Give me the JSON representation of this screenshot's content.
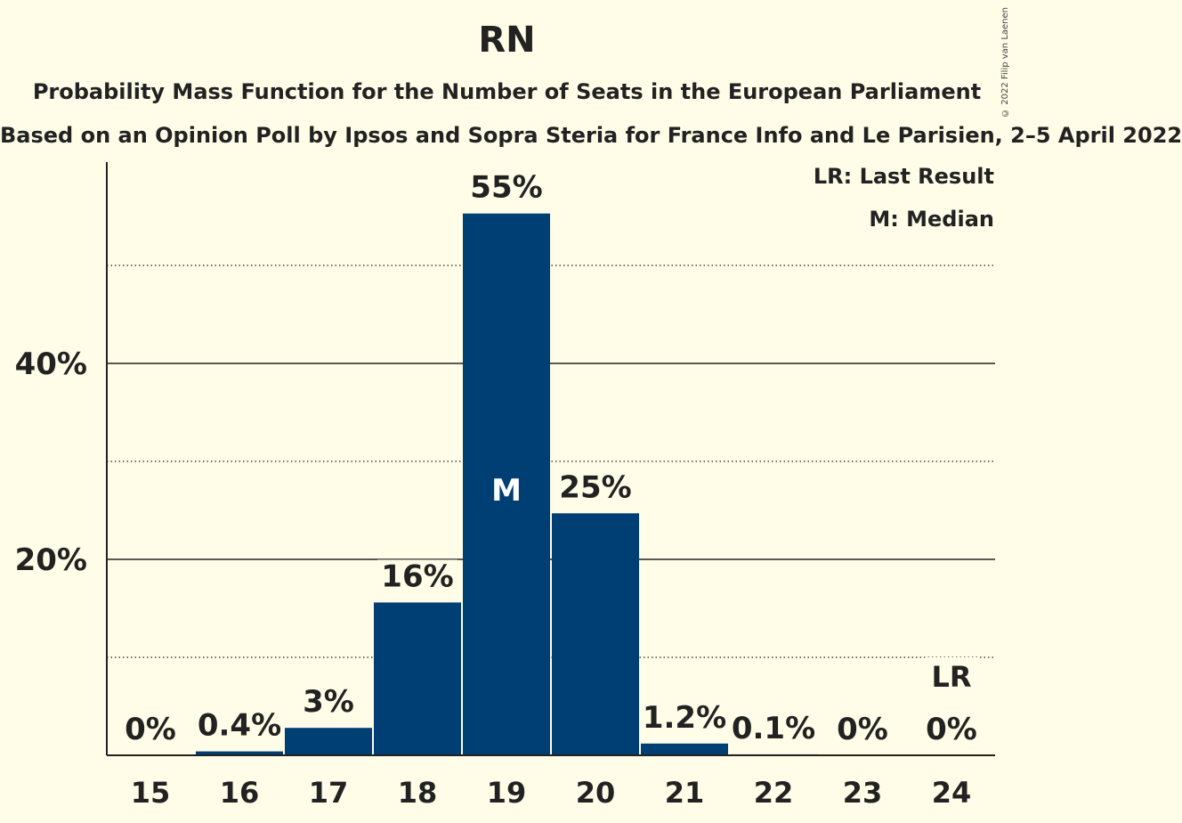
{
  "title": "RN",
  "subtitle": "Probability Mass Function for the Number of Seats in the European Parliament",
  "subtitle2": "Based on an Opinion Poll by Ipsos and Sopra Steria for France Info and Le Parisien, 2–5 April 2022",
  "copyright": "© 2022 Filip van Laenen",
  "legend": {
    "last_result": "LR: Last Result",
    "median": "M: Median"
  },
  "colors": {
    "background": "#FFFDE7",
    "bar": "#003F74"
  },
  "chart_data": {
    "type": "bar",
    "categories": [
      "15",
      "16",
      "17",
      "18",
      "19",
      "20",
      "21",
      "22",
      "23",
      "24"
    ],
    "values": [
      0,
      0.4,
      2.8,
      15.6,
      55.3,
      24.7,
      1.2,
      0.1,
      0,
      0
    ],
    "labels": [
      "0%",
      "0.4%",
      "3%",
      "16%",
      "55%",
      "25%",
      "1.2%",
      "0.1%",
      "0%",
      "0%"
    ],
    "ylim": [
      0,
      60
    ],
    "yticks_major": [
      {
        "value": 20,
        "label": "20%"
      },
      {
        "value": 40,
        "label": "40%"
      }
    ],
    "yticks_minor": [
      10,
      30,
      50
    ],
    "median_category": "19",
    "median_marker": "M",
    "last_result_category": "24",
    "last_result_marker": "LR"
  }
}
